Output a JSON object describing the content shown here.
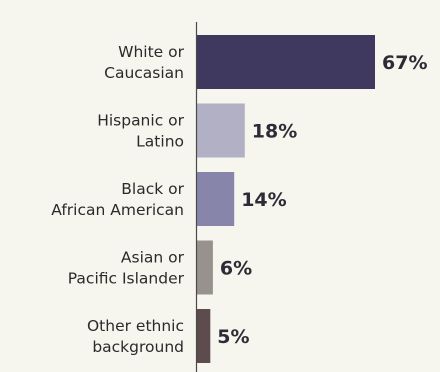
{
  "chart_data": {
    "type": "bar",
    "orientation": "horizontal",
    "categories": [
      [
        "White or",
        "Caucasian"
      ],
      [
        "Hispanic or",
        "Latino"
      ],
      [
        "Black or",
        "African American"
      ],
      [
        "Asian or",
        "Pacific Islander"
      ],
      [
        "Other ethnic",
        "background"
      ]
    ],
    "values": [
      67,
      18,
      14,
      6,
      5
    ],
    "value_labels": [
      "67%",
      "18%",
      "14%",
      "6%",
      "5%"
    ],
    "bar_colors": [
      "#3f3960",
      "#b1b0c4",
      "#8785a9",
      "#97938c",
      "#5d4b4e"
    ],
    "xlim": [
      0,
      67
    ],
    "grid": false,
    "legend": "none"
  },
  "colors": {
    "background": "#f6f5ee",
    "axis": "#4a4a4a",
    "category_text": "#2b2b2b",
    "value_text": "#2e2a36"
  }
}
